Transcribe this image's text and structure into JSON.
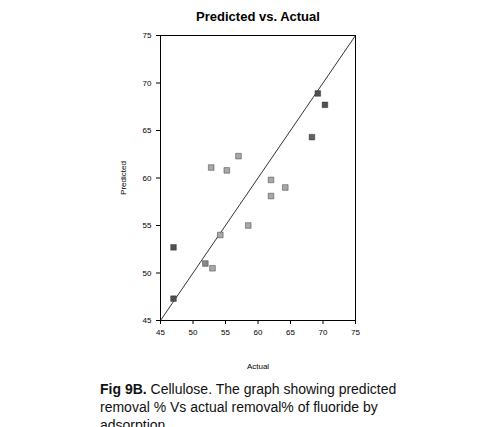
{
  "chart_data": {
    "type": "scatter",
    "title": "Predicted vs. Actual",
    "x_label": "Actual",
    "y_label": "Predicted",
    "x": [
      47,
      47,
      69.2,
      70.3,
      68.3,
      52.8,
      55.2,
      57,
      62,
      64.2,
      62,
      54.2,
      58.5,
      51.9,
      53
    ],
    "values": [
      52.7,
      47.3,
      68.9,
      67.7,
      64.3,
      61.1,
      60.8,
      62.3,
      59.8,
      59,
      58.1,
      54,
      55,
      51,
      50.5
    ],
    "colors": [
      "#505050",
      "#505050",
      "#505050",
      "#505050",
      "#606060",
      "#a8a8a8",
      "#a8a8a8",
      "#a8a8a8",
      "#a8a8a8",
      "#a8a8a8",
      "#a8a8a8",
      "#a8a8a8",
      "#a8a8a8",
      "#888888",
      "#a8a8a8"
    ],
    "marker": "square",
    "reference_line": {
      "x": [
        45,
        75
      ],
      "y": [
        45,
        75
      ],
      "color": "#333333",
      "line_style": "solid"
    },
    "xlim": [
      45,
      75
    ],
    "xticks": [
      45,
      50,
      55,
      60,
      65,
      70,
      75
    ],
    "ylim": [
      45,
      75
    ],
    "yticks": [
      45,
      50,
      55,
      60,
      65,
      70,
      75
    ],
    "grid": false,
    "caption": {
      "label": "Fig 9B.",
      "text": "Cellulose. The graph showing predicted removal % Vs actual removal% of fluoride by adsorption"
    }
  }
}
